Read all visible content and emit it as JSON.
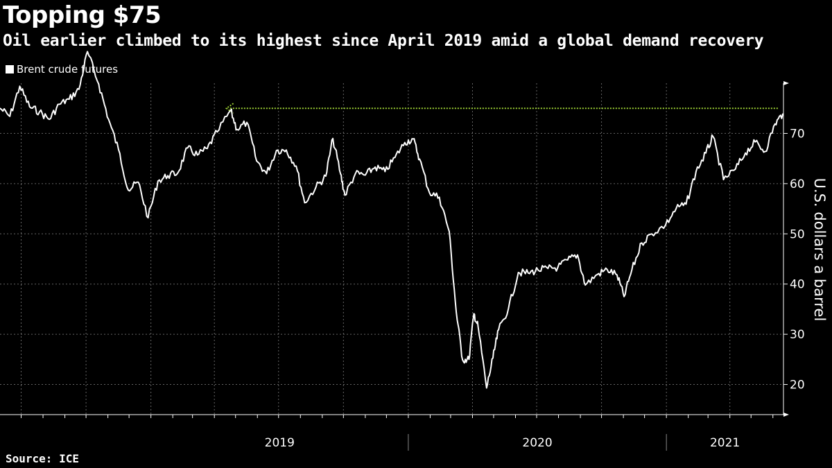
{
  "title": "Topping $75",
  "subtitle": "Oil earlier climbed to its highest since April 2019 amid a global demand recovery",
  "source": "Source: ICE",
  "chart_data": {
    "type": "line",
    "title": "Topping $75",
    "subtitle": "Oil earlier climbed to its highest since April 2019 amid a global demand recovery",
    "xlabel": "",
    "ylabel": "U.S. dollars a barrel",
    "xlim": [
      "2018-06-01",
      "2021-06-16"
    ],
    "ylim": [
      14,
      80
    ],
    "y_ticks": [
      20,
      30,
      40,
      50,
      60,
      70
    ],
    "x_tick_labels": [
      "2019",
      "2020",
      "2021"
    ],
    "grid": true,
    "y_axis_side": "right",
    "legend_position": "top-left",
    "colors": {
      "background": "#000000",
      "line": "#ffffff",
      "reference": "#9acd32",
      "grid": "#666666"
    },
    "series": [
      {
        "name": "Brent crude futures",
        "points": [
          [
            "2018-06-01",
            75.0
          ],
          [
            "2018-06-15",
            73.4
          ],
          [
            "2018-06-29",
            79.4
          ],
          [
            "2018-07-13",
            75.3
          ],
          [
            "2018-07-27",
            74.3
          ],
          [
            "2018-08-10",
            72.8
          ],
          [
            "2018-08-24",
            75.8
          ],
          [
            "2018-09-07",
            76.8
          ],
          [
            "2018-09-21",
            78.8
          ],
          [
            "2018-10-03",
            86.3
          ],
          [
            "2018-10-19",
            79.8
          ],
          [
            "2018-11-02",
            72.8
          ],
          [
            "2018-11-16",
            66.8
          ],
          [
            "2018-11-30",
            58.7
          ],
          [
            "2018-12-14",
            60.3
          ],
          [
            "2018-12-28",
            53.2
          ],
          [
            "2019-01-11",
            60.5
          ],
          [
            "2019-01-25",
            61.6
          ],
          [
            "2019-02-08",
            62.1
          ],
          [
            "2019-02-22",
            67.1
          ],
          [
            "2019-03-08",
            65.7
          ],
          [
            "2019-03-22",
            67.0
          ],
          [
            "2019-04-05",
            70.3
          ],
          [
            "2019-04-24",
            74.6
          ],
          [
            "2019-05-03",
            70.8
          ],
          [
            "2019-05-17",
            72.2
          ],
          [
            "2019-05-31",
            64.5
          ],
          [
            "2019-06-14",
            62.0
          ],
          [
            "2019-06-28",
            66.6
          ],
          [
            "2019-07-12",
            66.7
          ],
          [
            "2019-07-26",
            63.5
          ],
          [
            "2019-08-07",
            56.2
          ],
          [
            "2019-08-23",
            59.3
          ],
          [
            "2019-09-06",
            61.5
          ],
          [
            "2019-09-16",
            69.0
          ],
          [
            "2019-09-27",
            61.9
          ],
          [
            "2019-10-03",
            57.7
          ],
          [
            "2019-10-18",
            62.0
          ],
          [
            "2019-11-01",
            61.7
          ],
          [
            "2019-11-15",
            63.3
          ],
          [
            "2019-11-29",
            62.4
          ],
          [
            "2019-12-13",
            65.2
          ],
          [
            "2019-12-27",
            68.2
          ],
          [
            "2020-01-08",
            68.9
          ],
          [
            "2020-01-17",
            64.9
          ],
          [
            "2020-01-31",
            58.2
          ],
          [
            "2020-02-14",
            57.3
          ],
          [
            "2020-02-28",
            50.5
          ],
          [
            "2020-03-09",
            34.4
          ],
          [
            "2020-03-18",
            24.9
          ],
          [
            "2020-03-27",
            25.0
          ],
          [
            "2020-04-03",
            34.1
          ],
          [
            "2020-04-09",
            31.5
          ],
          [
            "2020-04-21",
            19.3
          ],
          [
            "2020-04-30",
            25.3
          ],
          [
            "2020-05-08",
            30.9
          ],
          [
            "2020-05-22",
            35.1
          ],
          [
            "2020-06-05",
            42.3
          ],
          [
            "2020-06-19",
            42.2
          ],
          [
            "2020-07-03",
            42.8
          ],
          [
            "2020-07-17",
            43.1
          ],
          [
            "2020-07-31",
            43.3
          ],
          [
            "2020-08-14",
            44.8
          ],
          [
            "2020-08-28",
            45.8
          ],
          [
            "2020-09-08",
            39.8
          ],
          [
            "2020-09-25",
            41.9
          ],
          [
            "2020-10-09",
            42.9
          ],
          [
            "2020-10-23",
            41.8
          ],
          [
            "2020-11-02",
            37.5
          ],
          [
            "2020-11-13",
            42.8
          ],
          [
            "2020-11-27",
            48.2
          ],
          [
            "2020-12-11",
            50.0
          ],
          [
            "2020-12-31",
            51.8
          ],
          [
            "2021-01-15",
            55.1
          ],
          [
            "2021-01-29",
            55.9
          ],
          [
            "2021-02-12",
            62.4
          ],
          [
            "2021-02-26",
            66.1
          ],
          [
            "2021-03-08",
            69.4
          ],
          [
            "2021-03-23",
            60.8
          ],
          [
            "2021-04-09",
            62.9
          ],
          [
            "2021-04-23",
            66.1
          ],
          [
            "2021-05-07",
            68.3
          ],
          [
            "2021-05-21",
            66.4
          ],
          [
            "2021-06-04",
            71.9
          ],
          [
            "2021-06-15",
            73.9
          ]
        ]
      }
    ],
    "reference_arrow": {
      "value": 75,
      "from": "2021-06-08",
      "to": "2019-04-24"
    }
  }
}
